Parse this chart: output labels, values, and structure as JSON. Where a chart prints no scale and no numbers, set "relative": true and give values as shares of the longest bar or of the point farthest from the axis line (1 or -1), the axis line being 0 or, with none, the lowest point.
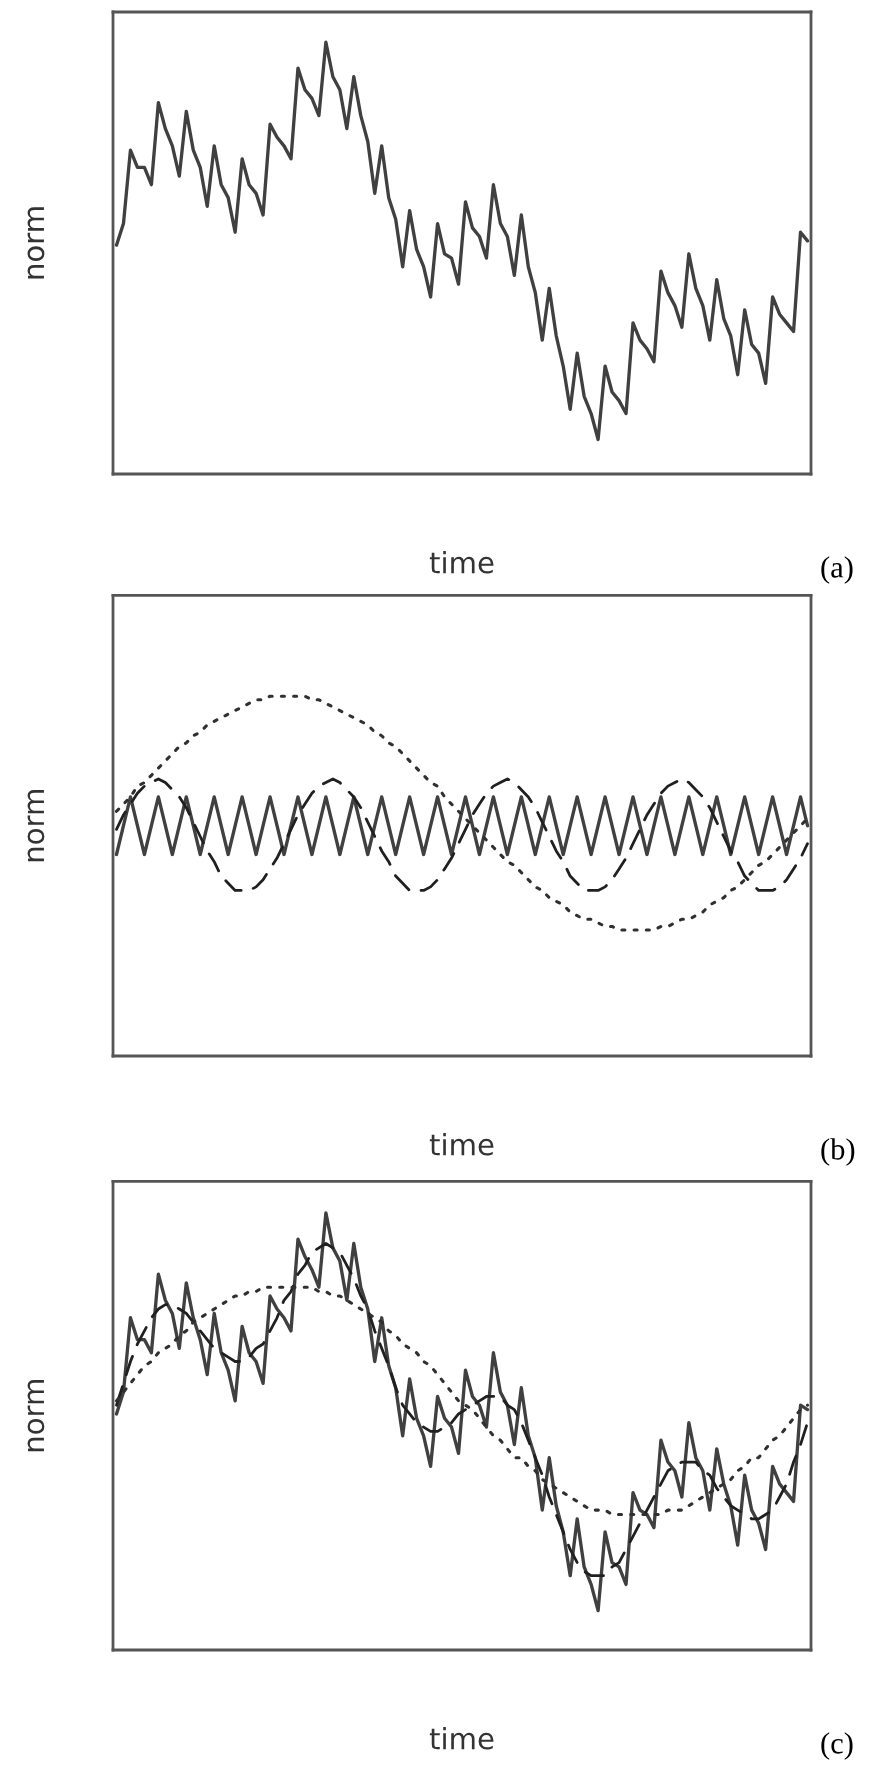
{
  "chart_data": [
    {
      "type": "line",
      "xlabel": "time",
      "ylabel": "norm",
      "annotations": [
        "(a)"
      ],
      "relative": true,
      "categories": [
        null,
        null,
        null,
        null,
        null,
        null,
        null,
        null,
        null,
        null,
        null,
        null,
        null,
        null,
        null,
        null,
        null,
        null,
        null,
        null,
        null,
        null,
        null,
        null,
        null,
        null,
        null,
        null,
        null,
        null,
        null,
        null,
        null,
        null,
        null,
        null,
        null,
        null,
        null,
        null,
        null,
        null,
        null,
        null,
        null,
        null,
        null,
        null,
        null,
        null,
        null,
        null,
        null,
        null,
        null,
        null,
        null,
        null,
        null,
        null,
        null,
        null,
        null,
        null,
        null,
        null,
        null,
        null,
        null,
        null,
        null,
        null,
        null,
        null,
        null,
        null,
        null,
        null,
        null,
        null,
        null,
        null,
        null,
        null,
        null,
        null,
        null,
        null,
        null,
        null,
        null,
        null,
        null,
        null,
        null,
        null,
        null,
        null,
        null,
        null
      ],
      "series": [
        {
          "color": "#404040",
          "line_style": "solid",
          "values": [
            0.53,
            0.58,
            0.75,
            0.71,
            0.71,
            0.67,
            0.86,
            0.8,
            0.76,
            0.69,
            0.84,
            0.75,
            0.71,
            0.62,
            0.76,
            0.67,
            0.64,
            0.56,
            0.73,
            0.67,
            0.65,
            0.6,
            0.81,
            0.78,
            0.76,
            0.73,
            0.94,
            0.89,
            0.87,
            0.83,
            1.0,
            0.92,
            0.89,
            0.8,
            0.92,
            0.83,
            0.77,
            0.65,
            0.76,
            0.64,
            0.59,
            0.48,
            0.61,
            0.52,
            0.48,
            0.41,
            0.58,
            0.51,
            0.5,
            0.44,
            0.63,
            0.57,
            0.55,
            0.5,
            0.67,
            0.58,
            0.55,
            0.46,
            0.6,
            0.48,
            0.42,
            0.31,
            0.43,
            0.32,
            0.25,
            0.15,
            0.28,
            0.18,
            0.14,
            0.08,
            0.25,
            0.19,
            0.17,
            0.14,
            0.35,
            0.31,
            0.29,
            0.26,
            0.47,
            0.42,
            0.39,
            0.34,
            0.51,
            0.43,
            0.39,
            0.31,
            0.45,
            0.36,
            0.32,
            0.23,
            0.38,
            0.3,
            0.28,
            0.21,
            0.41,
            0.37,
            0.35,
            0.33,
            0.56,
            0.54
          ]
        }
      ]
    },
    {
      "type": "line",
      "xlabel": "time",
      "ylabel": "norm",
      "annotations": [
        "(b)"
      ],
      "relative": true,
      "categories": [
        null,
        null,
        null,
        null,
        null,
        null,
        null,
        null,
        null,
        null,
        null,
        null,
        null,
        null,
        null,
        null,
        null,
        null,
        null,
        null,
        null,
        null,
        null,
        null,
        null,
        null,
        null,
        null,
        null,
        null,
        null,
        null,
        null,
        null,
        null,
        null,
        null,
        null,
        null,
        null,
        null,
        null,
        null,
        null,
        null,
        null,
        null,
        null,
        null,
        null,
        null,
        null,
        null,
        null,
        null,
        null,
        null,
        null,
        null,
        null,
        null,
        null,
        null,
        null,
        null,
        null,
        null,
        null,
        null,
        null,
        null,
        null,
        null,
        null,
        null,
        null,
        null,
        null,
        null,
        null,
        null,
        null,
        null,
        null,
        null,
        null,
        null,
        null,
        null,
        null,
        null,
        null,
        null,
        null,
        null,
        null,
        null,
        null,
        null,
        null
      ],
      "series": [
        {
          "color": "#404040",
          "line_style": "solid",
          "values": [
            0.56,
            0.64,
            0.72,
            0.64,
            0.56,
            0.64,
            0.72,
            0.64,
            0.56,
            0.64,
            0.72,
            0.64,
            0.56,
            0.64,
            0.72,
            0.64,
            0.56,
            0.64,
            0.72,
            0.64,
            0.56,
            0.64,
            0.72,
            0.64,
            0.56,
            0.64,
            0.72,
            0.64,
            0.56,
            0.64,
            0.72,
            0.64,
            0.56,
            0.64,
            0.72,
            0.64,
            0.56,
            0.64,
            0.72,
            0.64,
            0.56,
            0.64,
            0.72,
            0.64,
            0.56,
            0.64,
            0.72,
            0.64,
            0.56,
            0.64,
            0.72,
            0.64,
            0.56,
            0.64,
            0.72,
            0.64,
            0.56,
            0.64,
            0.72,
            0.64,
            0.56,
            0.64,
            0.72,
            0.64,
            0.56,
            0.64,
            0.72,
            0.64,
            0.56,
            0.64,
            0.72,
            0.64,
            0.56,
            0.64,
            0.72,
            0.64,
            0.56,
            0.64,
            0.72,
            0.64,
            0.56,
            0.64,
            0.72,
            0.64,
            0.56,
            0.64,
            0.72,
            0.64,
            0.56,
            0.64,
            0.72,
            0.64,
            0.56,
            0.64,
            0.72,
            0.64,
            0.56,
            0.64,
            0.72,
            0.64
          ]
        },
        {
          "color": "#202020",
          "line_style": "dashed",
          "values": [
            0.63,
            0.67,
            0.7,
            0.73,
            0.75,
            0.76,
            0.77,
            0.76,
            0.74,
            0.72,
            0.69,
            0.65,
            0.61,
            0.57,
            0.54,
            0.5,
            0.48,
            0.46,
            0.46,
            0.46,
            0.47,
            0.49,
            0.52,
            0.55,
            0.59,
            0.63,
            0.67,
            0.7,
            0.73,
            0.75,
            0.76,
            0.77,
            0.76,
            0.74,
            0.72,
            0.69,
            0.65,
            0.61,
            0.57,
            0.54,
            0.5,
            0.48,
            0.46,
            0.46,
            0.46,
            0.47,
            0.49,
            0.52,
            0.55,
            0.59,
            0.63,
            0.67,
            0.7,
            0.73,
            0.75,
            0.76,
            0.77,
            0.76,
            0.74,
            0.72,
            0.69,
            0.65,
            0.61,
            0.57,
            0.54,
            0.5,
            0.48,
            0.46,
            0.46,
            0.46,
            0.47,
            0.49,
            0.52,
            0.55,
            0.59,
            0.63,
            0.67,
            0.7,
            0.73,
            0.75,
            0.76,
            0.77,
            0.76,
            0.74,
            0.72,
            0.69,
            0.65,
            0.61,
            0.57,
            0.54,
            0.5,
            0.48,
            0.46,
            0.46,
            0.46,
            0.47,
            0.49,
            0.52,
            0.55,
            0.59
          ]
        },
        {
          "color": "#303030",
          "line_style": "dotted",
          "values": [
            0.68,
            0.7,
            0.72,
            0.75,
            0.76,
            0.78,
            0.8,
            0.82,
            0.84,
            0.86,
            0.87,
            0.89,
            0.9,
            0.92,
            0.93,
            0.94,
            0.95,
            0.96,
            0.97,
            0.98,
            0.99,
            0.99,
            1.0,
            1.0,
            1.0,
            1.0,
            1.0,
            1.0,
            0.99,
            0.99,
            0.98,
            0.97,
            0.96,
            0.95,
            0.94,
            0.93,
            0.92,
            0.9,
            0.89,
            0.87,
            0.86,
            0.84,
            0.82,
            0.8,
            0.78,
            0.76,
            0.75,
            0.72,
            0.7,
            0.68,
            0.66,
            0.64,
            0.62,
            0.6,
            0.58,
            0.56,
            0.54,
            0.53,
            0.51,
            0.49,
            0.47,
            0.46,
            0.44,
            0.43,
            0.42,
            0.4,
            0.39,
            0.38,
            0.38,
            0.37,
            0.36,
            0.36,
            0.35,
            0.35,
            0.35,
            0.35,
            0.35,
            0.35,
            0.36,
            0.36,
            0.37,
            0.38,
            0.38,
            0.39,
            0.4,
            0.42,
            0.43,
            0.44,
            0.46,
            0.47,
            0.49,
            0.51,
            0.53,
            0.54,
            0.56,
            0.58,
            0.6,
            0.62,
            0.64,
            0.66
          ]
        }
      ]
    },
    {
      "type": "line",
      "xlabel": "time",
      "ylabel": "norm",
      "annotations": [
        "(c)"
      ],
      "relative": true,
      "categories": [
        null,
        null,
        null,
        null,
        null,
        null,
        null,
        null,
        null,
        null,
        null,
        null,
        null,
        null,
        null,
        null,
        null,
        null,
        null,
        null,
        null,
        null,
        null,
        null,
        null,
        null,
        null,
        null,
        null,
        null,
        null,
        null,
        null,
        null,
        null,
        null,
        null,
        null,
        null,
        null,
        null,
        null,
        null,
        null,
        null,
        null,
        null,
        null,
        null,
        null,
        null,
        null,
        null,
        null,
        null,
        null,
        null,
        null,
        null,
        null,
        null,
        null,
        null,
        null,
        null,
        null,
        null,
        null,
        null,
        null,
        null,
        null,
        null,
        null,
        null,
        null,
        null,
        null,
        null,
        null,
        null,
        null,
        null,
        null,
        null,
        null,
        null,
        null,
        null,
        null,
        null,
        null,
        null,
        null,
        null,
        null,
        null,
        null,
        null,
        null
      ],
      "series": [
        {
          "color": "#404040",
          "line_style": "solid",
          "values": [
            0.54,
            0.59,
            0.76,
            0.71,
            0.71,
            0.68,
            0.86,
            0.8,
            0.77,
            0.69,
            0.84,
            0.76,
            0.71,
            0.63,
            0.77,
            0.68,
            0.64,
            0.57,
            0.74,
            0.68,
            0.66,
            0.61,
            0.81,
            0.78,
            0.76,
            0.73,
            0.94,
            0.9,
            0.87,
            0.83,
            1.0,
            0.92,
            0.89,
            0.8,
            0.93,
            0.83,
            0.78,
            0.66,
            0.76,
            0.65,
            0.6,
            0.49,
            0.62,
            0.53,
            0.49,
            0.42,
            0.58,
            0.53,
            0.51,
            0.45,
            0.64,
            0.58,
            0.56,
            0.51,
            0.68,
            0.59,
            0.56,
            0.47,
            0.6,
            0.49,
            0.44,
            0.32,
            0.44,
            0.33,
            0.27,
            0.17,
            0.3,
            0.19,
            0.15,
            0.09,
            0.27,
            0.2,
            0.19,
            0.15,
            0.36,
            0.32,
            0.31,
            0.28,
            0.48,
            0.43,
            0.41,
            0.35,
            0.52,
            0.44,
            0.41,
            0.32,
            0.46,
            0.38,
            0.33,
            0.24,
            0.4,
            0.32,
            0.29,
            0.23,
            0.42,
            0.38,
            0.36,
            0.34,
            0.56,
            0.55
          ]
        },
        {
          "color": "#202020",
          "line_style": "dashed",
          "values": [
            0.56,
            0.61,
            0.66,
            0.7,
            0.73,
            0.76,
            0.78,
            0.79,
            0.79,
            0.78,
            0.77,
            0.75,
            0.73,
            0.71,
            0.69,
            0.68,
            0.67,
            0.66,
            0.66,
            0.67,
            0.69,
            0.7,
            0.73,
            0.76,
            0.8,
            0.82,
            0.86,
            0.88,
            0.91,
            0.92,
            0.93,
            0.92,
            0.91,
            0.88,
            0.85,
            0.81,
            0.78,
            0.73,
            0.69,
            0.65,
            0.6,
            0.56,
            0.54,
            0.52,
            0.51,
            0.5,
            0.5,
            0.51,
            0.52,
            0.54,
            0.55,
            0.56,
            0.57,
            0.58,
            0.58,
            0.58,
            0.56,
            0.55,
            0.52,
            0.48,
            0.44,
            0.4,
            0.35,
            0.31,
            0.27,
            0.23,
            0.2,
            0.18,
            0.17,
            0.17,
            0.17,
            0.19,
            0.2,
            0.23,
            0.26,
            0.29,
            0.32,
            0.35,
            0.38,
            0.41,
            0.42,
            0.43,
            0.43,
            0.43,
            0.41,
            0.4,
            0.37,
            0.35,
            0.33,
            0.32,
            0.31,
            0.3,
            0.3,
            0.31,
            0.32,
            0.35,
            0.38,
            0.43,
            0.47,
            0.52
          ]
        },
        {
          "color": "#303030",
          "line_style": "dotted",
          "values": [
            0.57,
            0.59,
            0.61,
            0.63,
            0.65,
            0.66,
            0.68,
            0.69,
            0.7,
            0.72,
            0.73,
            0.75,
            0.76,
            0.77,
            0.78,
            0.79,
            0.8,
            0.81,
            0.81,
            0.82,
            0.82,
            0.83,
            0.83,
            0.83,
            0.83,
            0.83,
            0.83,
            0.83,
            0.83,
            0.82,
            0.82,
            0.81,
            0.81,
            0.8,
            0.79,
            0.78,
            0.77,
            0.76,
            0.75,
            0.73,
            0.72,
            0.7,
            0.69,
            0.68,
            0.66,
            0.65,
            0.63,
            0.61,
            0.59,
            0.57,
            0.56,
            0.55,
            0.53,
            0.51,
            0.49,
            0.48,
            0.46,
            0.44,
            0.44,
            0.42,
            0.41,
            0.39,
            0.38,
            0.37,
            0.36,
            0.35,
            0.34,
            0.33,
            0.32,
            0.32,
            0.32,
            0.31,
            0.31,
            0.31,
            0.31,
            0.31,
            0.31,
            0.31,
            0.31,
            0.32,
            0.32,
            0.32,
            0.33,
            0.34,
            0.35,
            0.36,
            0.37,
            0.38,
            0.39,
            0.41,
            0.42,
            0.44,
            0.44,
            0.46,
            0.48,
            0.49,
            0.51,
            0.53,
            0.55,
            0.56
          ]
        }
      ]
    }
  ]
}
